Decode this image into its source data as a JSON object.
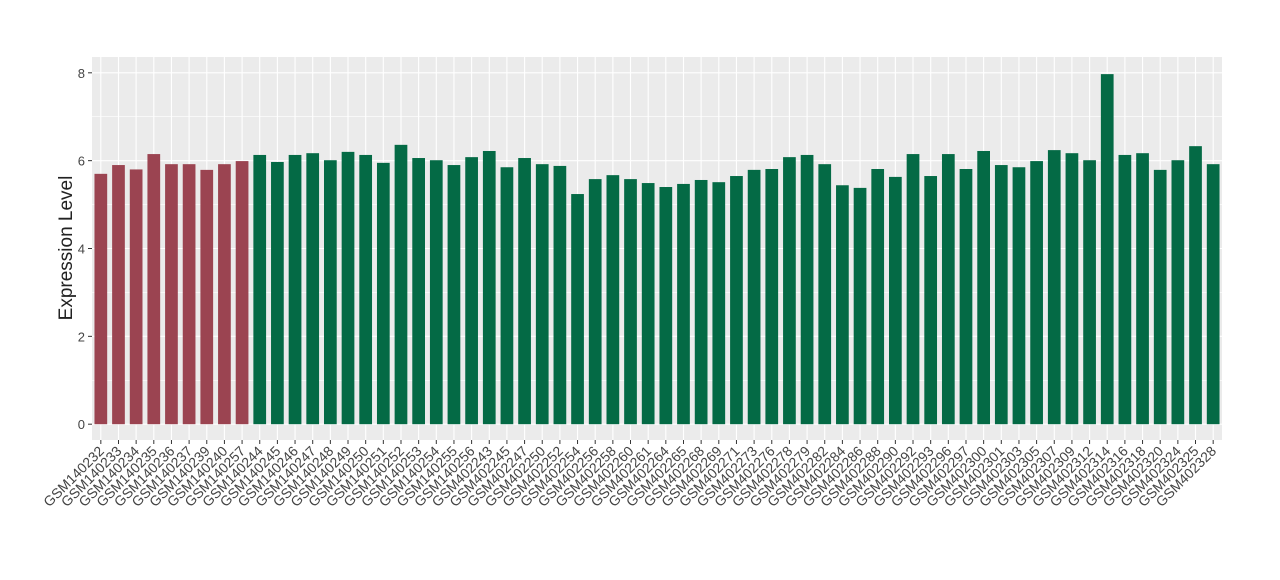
{
  "chart_data": {
    "type": "bar",
    "y_label": "Expression Level",
    "categories": [
      "GSM140232",
      "GSM140233",
      "GSM140234",
      "GSM140235",
      "GSM140236",
      "GSM140237",
      "GSM140239",
      "GSM140240",
      "GSM140257",
      "GSM140244",
      "GSM140245",
      "GSM140246",
      "GSM140247",
      "GSM140248",
      "GSM140249",
      "GSM140250",
      "GSM140251",
      "GSM140252",
      "GSM140253",
      "GSM140254",
      "GSM140255",
      "GSM140256",
      "GSM402243",
      "GSM402245",
      "GSM402247",
      "GSM402250",
      "GSM402252",
      "GSM402254",
      "GSM402256",
      "GSM402258",
      "GSM402260",
      "GSM402261",
      "GSM402264",
      "GSM402265",
      "GSM402268",
      "GSM402269",
      "GSM402271",
      "GSM402273",
      "GSM402276",
      "GSM402278",
      "GSM402279",
      "GSM402282",
      "GSM402284",
      "GSM402286",
      "GSM402288",
      "GSM402290",
      "GSM402292",
      "GSM402293",
      "GSM402296",
      "GSM402297",
      "GSM402300",
      "GSM402301",
      "GSM402303",
      "GSM402305",
      "GSM402307",
      "GSM402309",
      "GSM402312",
      "GSM402314",
      "GSM402316",
      "GSM402318",
      "GSM402320",
      "GSM402324",
      "GSM402325",
      "GSM402328"
    ],
    "values": [
      5.7,
      5.9,
      5.8,
      6.15,
      5.92,
      5.92,
      5.79,
      5.92,
      5.99,
      6.13,
      5.97,
      6.13,
      6.17,
      6.01,
      6.2,
      6.13,
      5.95,
      6.36,
      6.06,
      6.01,
      5.9,
      6.08,
      6.22,
      5.85,
      6.06,
      5.92,
      5.88,
      5.24,
      5.58,
      5.67,
      5.58,
      5.49,
      5.4,
      5.47,
      5.56,
      5.51,
      5.65,
      5.79,
      5.81,
      6.08,
      6.13,
      5.92,
      5.44,
      5.38,
      5.81,
      5.63,
      6.15,
      5.65,
      6.15,
      5.81,
      6.22,
      5.9,
      5.85,
      5.99,
      6.24,
      6.17,
      6.01,
      7.97,
      6.13,
      6.17,
      5.79,
      6.01,
      6.33,
      5.92
    ],
    "colors": [
      "#9b4451",
      "#9b4451",
      "#9b4451",
      "#9b4451",
      "#9b4451",
      "#9b4451",
      "#9b4451",
      "#9b4451",
      "#9b4451",
      "#046a45",
      "#046a45",
      "#046a45",
      "#046a45",
      "#046a45",
      "#046a45",
      "#046a45",
      "#046a45",
      "#046a45",
      "#046a45",
      "#046a45",
      "#046a45",
      "#046a45",
      "#046a45",
      "#046a45",
      "#046a45",
      "#046a45",
      "#046a45",
      "#046a45",
      "#046a45",
      "#046a45",
      "#046a45",
      "#046a45",
      "#046a45",
      "#046a45",
      "#046a45",
      "#046a45",
      "#046a45",
      "#046a45",
      "#046a45",
      "#046a45",
      "#046a45",
      "#046a45",
      "#046a45",
      "#046a45",
      "#046a45",
      "#046a45",
      "#046a45",
      "#046a45",
      "#046a45",
      "#046a45",
      "#046a45",
      "#046a45",
      "#046a45",
      "#046a45",
      "#046a45",
      "#046a45",
      "#046a45",
      "#046a45",
      "#046a45",
      "#046a45",
      "#046a45",
      "#046a45",
      "#046a45",
      "#046a45"
    ],
    "ylim": [
      -0.36,
      8.36
    ],
    "yticks": [
      0,
      2,
      4,
      6,
      8
    ],
    "grid": true,
    "panel_color": "#ebebeb"
  }
}
